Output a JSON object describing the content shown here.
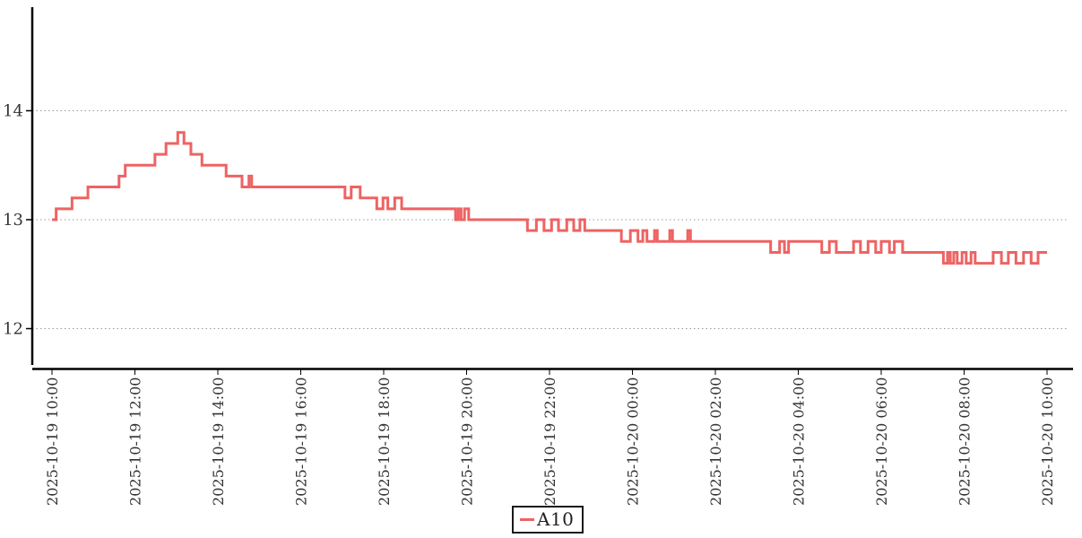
{
  "chart_data": {
    "type": "line",
    "subtype": "step-post",
    "title": "",
    "xlabel": "",
    "ylabel": "",
    "grid": "horizontal-dotted",
    "x_axis": {
      "start": "2025-10-19 10:00",
      "end": "2025-10-20 10:00",
      "tick_interval_hours": 2,
      "label_rotation_deg": -90,
      "tick_labels": [
        "2025-10-19 10:00",
        "2025-10-19 12:00",
        "2025-10-19 14:00",
        "2025-10-19 16:00",
        "2025-10-19 18:00",
        "2025-10-19 20:00",
        "2025-10-19 22:00",
        "2025-10-20 00:00",
        "2025-10-20 02:00",
        "2025-10-20 04:00",
        "2025-10-20 06:00",
        "2025-10-20 08:00",
        "2025-10-20 10:00"
      ]
    },
    "y_axis": {
      "tick_labels": [
        "12",
        "13",
        "14"
      ],
      "tick_values": [
        12,
        13,
        14
      ],
      "ylim": [
        11.64,
        14.95
      ]
    },
    "legend": {
      "position": "bottom-center",
      "entries": [
        "A10"
      ]
    },
    "series": [
      {
        "name": "A10",
        "color": "#ee6363",
        "x_unit": "minutes since 2025-10-19 10:00",
        "points": [
          [
            0,
            13.0
          ],
          [
            6,
            13.1
          ],
          [
            29,
            13.2
          ],
          [
            52,
            13.3
          ],
          [
            97,
            13.4
          ],
          [
            106,
            13.5
          ],
          [
            149,
            13.6
          ],
          [
            165,
            13.7
          ],
          [
            182,
            13.8
          ],
          [
            191,
            13.7
          ],
          [
            201,
            13.6
          ],
          [
            217,
            13.5
          ],
          [
            252,
            13.4
          ],
          [
            275,
            13.3
          ],
          [
            285,
            13.4
          ],
          [
            289,
            13.3
          ],
          [
            424,
            13.2
          ],
          [
            433,
            13.3
          ],
          [
            446,
            13.2
          ],
          [
            470,
            13.1
          ],
          [
            479,
            13.2
          ],
          [
            486,
            13.1
          ],
          [
            496,
            13.2
          ],
          [
            506,
            13.1
          ],
          [
            584,
            13.0
          ],
          [
            588,
            13.1
          ],
          [
            592,
            13.0
          ],
          [
            597,
            13.1
          ],
          [
            603,
            13.0
          ],
          [
            688,
            12.9
          ],
          [
            701,
            13.0
          ],
          [
            712,
            12.9
          ],
          [
            723,
            13.0
          ],
          [
            733,
            12.9
          ],
          [
            745,
            13.0
          ],
          [
            755,
            12.9
          ],
          [
            764,
            13.0
          ],
          [
            771,
            12.9
          ],
          [
            824,
            12.8
          ],
          [
            837,
            12.9
          ],
          [
            848,
            12.8
          ],
          [
            855,
            12.9
          ],
          [
            861,
            12.8
          ],
          [
            872,
            12.9
          ],
          [
            876,
            12.8
          ],
          [
            894,
            12.9
          ],
          [
            898,
            12.8
          ],
          [
            920,
            12.9
          ],
          [
            924,
            12.8
          ],
          [
            1040,
            12.7
          ],
          [
            1053,
            12.8
          ],
          [
            1060,
            12.7
          ],
          [
            1066,
            12.8
          ],
          [
            1114,
            12.7
          ],
          [
            1125,
            12.8
          ],
          [
            1135,
            12.7
          ],
          [
            1160,
            12.8
          ],
          [
            1170,
            12.7
          ],
          [
            1181,
            12.8
          ],
          [
            1192,
            12.7
          ],
          [
            1200,
            12.8
          ],
          [
            1212,
            12.7
          ],
          [
            1219,
            12.8
          ],
          [
            1231,
            12.7
          ],
          [
            1290,
            12.6
          ],
          [
            1296,
            12.7
          ],
          [
            1300,
            12.6
          ],
          [
            1305,
            12.7
          ],
          [
            1310,
            12.6
          ],
          [
            1317,
            12.7
          ],
          [
            1323,
            12.6
          ],
          [
            1330,
            12.7
          ],
          [
            1336,
            12.6
          ],
          [
            1362,
            12.7
          ],
          [
            1374,
            12.6
          ],
          [
            1384,
            12.7
          ],
          [
            1395,
            12.6
          ],
          [
            1406,
            12.7
          ],
          [
            1417,
            12.6
          ],
          [
            1427,
            12.7
          ],
          [
            1440,
            12.7
          ]
        ]
      }
    ]
  },
  "colors": {
    "line": "#ee6363",
    "axis": "#000000",
    "grid": "#999999",
    "text": "#333333",
    "background": "#ffffff"
  }
}
